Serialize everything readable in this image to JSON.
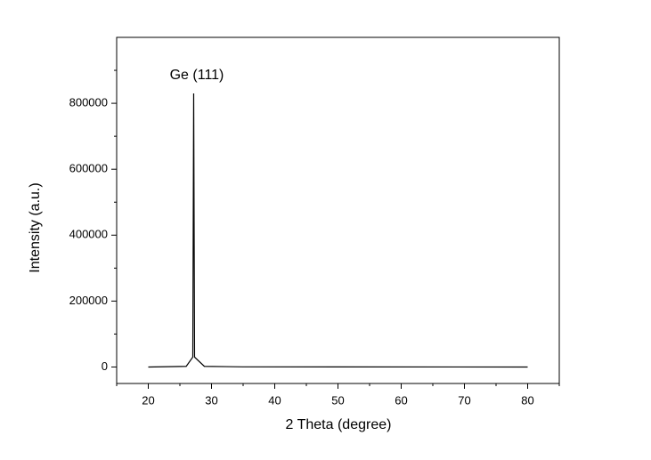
{
  "chart_data": {
    "type": "line",
    "x_label": "2 Theta (degree)",
    "y_label": "Intensity (a.u.)",
    "annotation": "Ge (111)",
    "x": [
      20,
      26,
      27.04,
      27.18,
      27.32,
      28.87,
      35,
      80
    ],
    "series": [
      {
        "color": "#000000",
        "values": [
          0,
          2000,
          30000,
          830000,
          30000,
          2000,
          500,
          0
        ]
      }
    ],
    "xlim": [
      15,
      85
    ],
    "xticks": [
      20,
      30,
      40,
      50,
      60,
      70,
      80
    ],
    "x_minor_ticks": [
      15,
      25,
      35,
      45,
      55,
      65,
      75,
      85
    ],
    "ylim": [
      -50000,
      1000000
    ],
    "yticks": [
      0,
      200000,
      400000,
      600000,
      800000
    ],
    "y_minor_ticks": [
      100000,
      300000,
      500000,
      700000,
      900000
    ],
    "grid": false
  }
}
